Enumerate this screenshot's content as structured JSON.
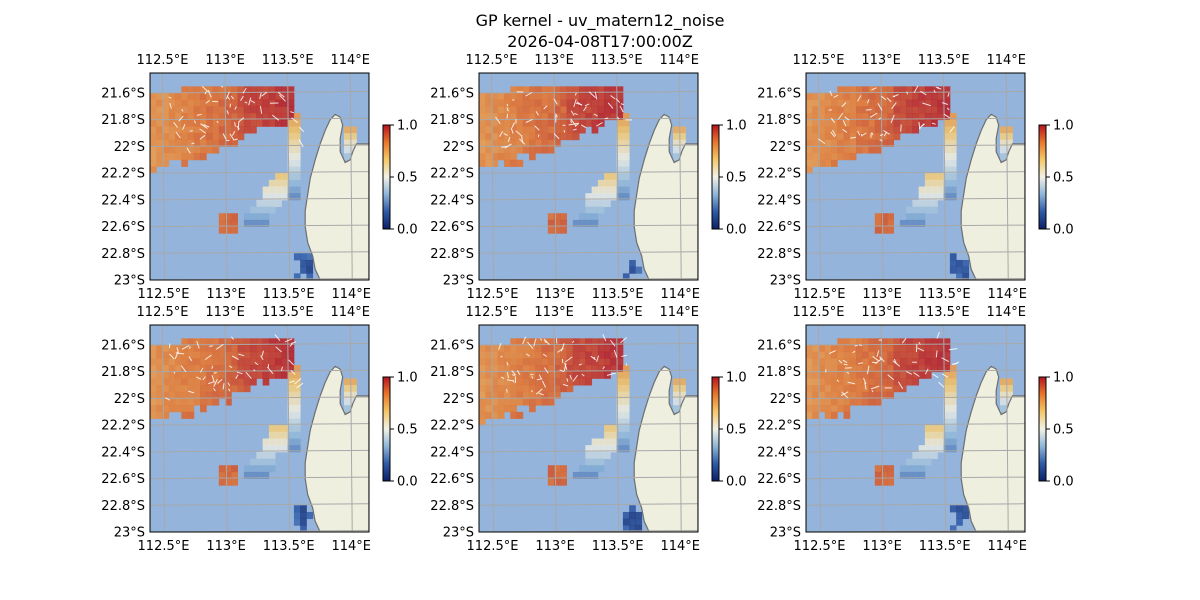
{
  "figure": {
    "title": "GP kernel - uv_matern12_noise",
    "subtitle": "2026-04-08T17:00:00Z"
  },
  "colors": {
    "ocean": "#94b4dc",
    "land": "#efefe0",
    "coast": "#6e6e6e",
    "grid": "#a8a8a8",
    "arrow": "#ffffff",
    "cmap": [
      "#0b1f66",
      "#2f5aa6",
      "#8fb6d8",
      "#f1f1e6",
      "#f4c86a",
      "#e8772c",
      "#b7141e"
    ]
  },
  "chart_data": {
    "type": "heatmap",
    "layout": "2x3 small multiples",
    "x_ticks": [
      "112.5°E",
      "113°E",
      "113.5°E",
      "114°E"
    ],
    "y_ticks": [
      "21.6°S",
      "21.8°S",
      "22°S",
      "22.2°S",
      "22.4°S",
      "22.6°S",
      "22.8°S",
      "23°S"
    ],
    "x_tick_values": [
      112.5,
      113.0,
      113.5,
      114.0
    ],
    "y_tick_values": [
      -21.6,
      -21.8,
      -22.0,
      -22.2,
      -22.4,
      -22.6,
      -22.8,
      -23.0
    ],
    "xlim": [
      112.4,
      114.15
    ],
    "ylim": [
      -23.0,
      -21.45
    ],
    "grid": true,
    "colorbar": {
      "ticks": [
        "0.0",
        "0.5",
        "1.0"
      ],
      "range": [
        0,
        1
      ]
    },
    "panels": [
      {
        "name": "panel-1"
      },
      {
        "name": "panel-2"
      },
      {
        "name": "panel-3"
      },
      {
        "name": "panel-4"
      },
      {
        "name": "panel-5"
      },
      {
        "name": "panel-6"
      }
    ]
  }
}
